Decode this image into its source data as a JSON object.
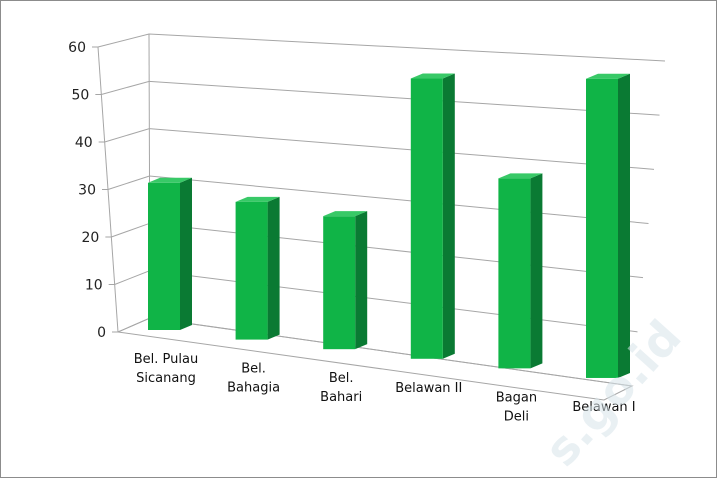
{
  "chart_data": {
    "type": "bar",
    "title": "",
    "xlabel": "",
    "ylabel": "",
    "categories": [
      [
        "Bel. Pulau",
        "Sicanang"
      ],
      [
        "Bel.",
        "Bahagia"
      ],
      [
        "Bel.",
        "Bahari"
      ],
      [
        "Belawan II"
      ],
      [
        "Bagan",
        "Deli"
      ],
      [
        "Belawan I"
      ]
    ],
    "values": [
      31,
      29,
      28,
      59,
      40,
      63
    ],
    "ylim": [
      0,
      60
    ],
    "yticks": [
      "0",
      "10",
      "20",
      "30",
      "40",
      "50",
      "60"
    ],
    "grid": true,
    "bar_color": "#10b447",
    "bar_top_color": "#38c967",
    "bar_side_color": "#0a7a33",
    "watermark": "s.go.id"
  }
}
